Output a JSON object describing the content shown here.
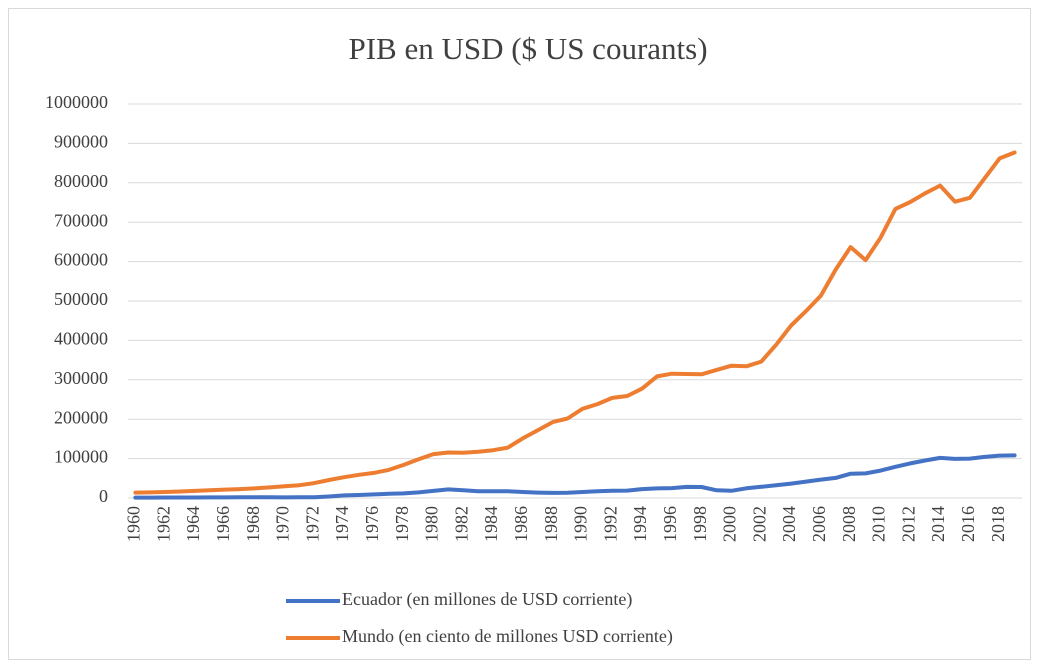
{
  "chart_data": {
    "type": "line",
    "title": "PIB en USD ($ US courants)",
    "categories": [
      "1960",
      null,
      "1962",
      null,
      "1964",
      null,
      "1966",
      null,
      "1968",
      null,
      "1970",
      null,
      "1972",
      null,
      "1974",
      null,
      "1976",
      null,
      "1978",
      null,
      "1980",
      null,
      "1982",
      null,
      "1984",
      null,
      "1986",
      null,
      "1988",
      null,
      "1990",
      null,
      "1992",
      null,
      "1994",
      null,
      "1996",
      null,
      "1998",
      null,
      "2000",
      null,
      "2002",
      null,
      "2004",
      null,
      "2006",
      null,
      "2008",
      null,
      "2010",
      null,
      "2012",
      null,
      "2014",
      null,
      "2016",
      null,
      "2018",
      null
    ],
    "series": [
      {
        "name": "Ecuador (en millones de USD corriente)",
        "color": "#4472c4",
        "values": [
          1000,
          1100,
          1150,
          1250,
          1350,
          1450,
          1550,
          1700,
          1800,
          1900,
          1600,
          1700,
          1900,
          3800,
          6600,
          7700,
          9100,
          10600,
          11700,
          14200,
          17900,
          21800,
          19900,
          17100,
          16900,
          17100,
          15300,
          13700,
          12900,
          13400,
          15200,
          16900,
          18200,
          18900,
          22700,
          24400,
          25200,
          28200,
          27900,
          19600,
          18300,
          24500,
          28500,
          32400,
          36600,
          41500,
          46800,
          51000,
          61800,
          62500,
          69600,
          79300,
          87900,
          95100,
          101700,
          99300,
          99900,
          104300,
          107600,
          108100
        ]
      },
      {
        "name": "Mundo (en ciento de millones USD corriente)",
        "color": "#ed7d31",
        "values": [
          13700,
          14300,
          15300,
          16500,
          18100,
          19700,
          21300,
          22600,
          24300,
          26900,
          29800,
          32600,
          37700,
          45600,
          52900,
          59000,
          63600,
          71200,
          84100,
          98300,
          111300,
          115500,
          114600,
          117200,
          121300,
          127900,
          151500,
          171800,
          192600,
          201800,
          226300,
          238400,
          254000,
          259000,
          277600,
          308600,
          315600,
          314600,
          313900,
          325200,
          335700,
          334300,
          346300,
          388800,
          437900,
          474300,
          513800,
          580100,
          636900,
          603800,
          660400,
          733700,
          751200,
          773400,
          793000,
          752000,
          762000,
          812000,
          862000,
          877000
        ]
      }
    ],
    "ylim": [
      0,
      1000000
    ],
    "yticks": [
      0,
      100000,
      200000,
      300000,
      400000,
      500000,
      600000,
      700000,
      800000,
      900000,
      1000000
    ],
    "grid": true
  }
}
